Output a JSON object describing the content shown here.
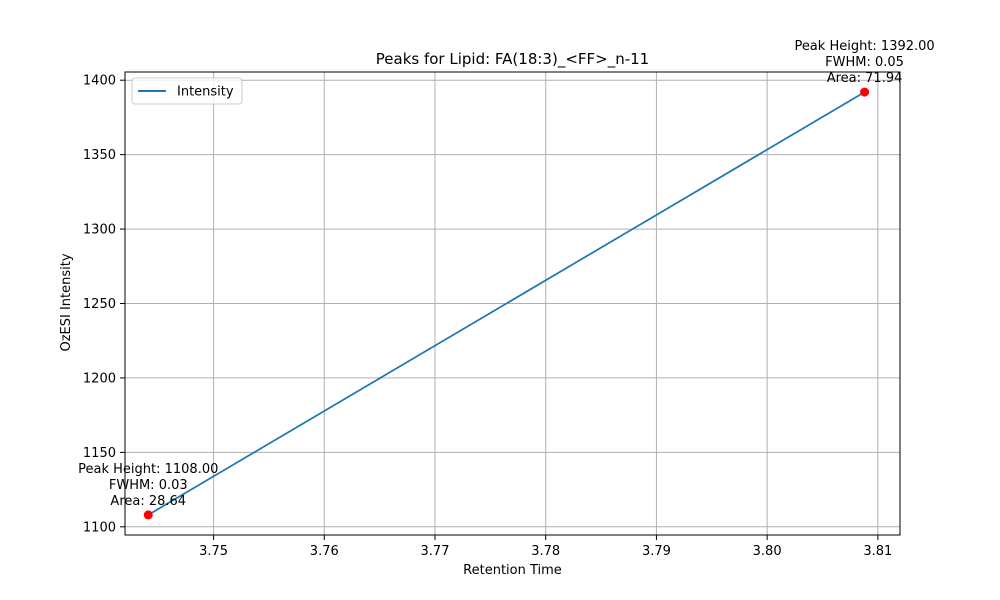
{
  "chart_data": {
    "type": "line",
    "title": "Peaks for Lipid: FA(18:3)_<FF>_n-11",
    "xlabel": "Retention Time",
    "ylabel": "OzESI Intensity",
    "xlim": [
      3.742,
      3.812
    ],
    "ylim": [
      1094.5,
      1405.5
    ],
    "xticks": [
      3.75,
      3.76,
      3.77,
      3.78,
      3.79,
      3.8,
      3.81
    ],
    "xtick_labels": [
      "3.75",
      "3.76",
      "3.77",
      "3.78",
      "3.79",
      "3.80",
      "3.81"
    ],
    "yticks": [
      1100,
      1150,
      1200,
      1250,
      1300,
      1350,
      1400
    ],
    "ytick_labels": [
      "1100",
      "1150",
      "1200",
      "1250",
      "1300",
      "1350",
      "1400"
    ],
    "grid": true,
    "legend_position": "top-left",
    "series": [
      {
        "name": "Intensity",
        "color": "#1f77b4",
        "x": [
          3.7441,
          3.8088
        ],
        "y": [
          1108,
          1392
        ]
      }
    ],
    "peaks": {
      "color": "#ff0000",
      "points": [
        {
          "x": 3.7441,
          "y": 1108,
          "lines": [
            "Peak Height: 1108.00",
            "FWHM: 0.03",
            "Area: 28.64"
          ]
        },
        {
          "x": 3.8088,
          "y": 1392,
          "lines": [
            "Peak Height: 1392.00",
            "FWHM: 0.05",
            "Area: 71.94"
          ]
        }
      ]
    }
  }
}
